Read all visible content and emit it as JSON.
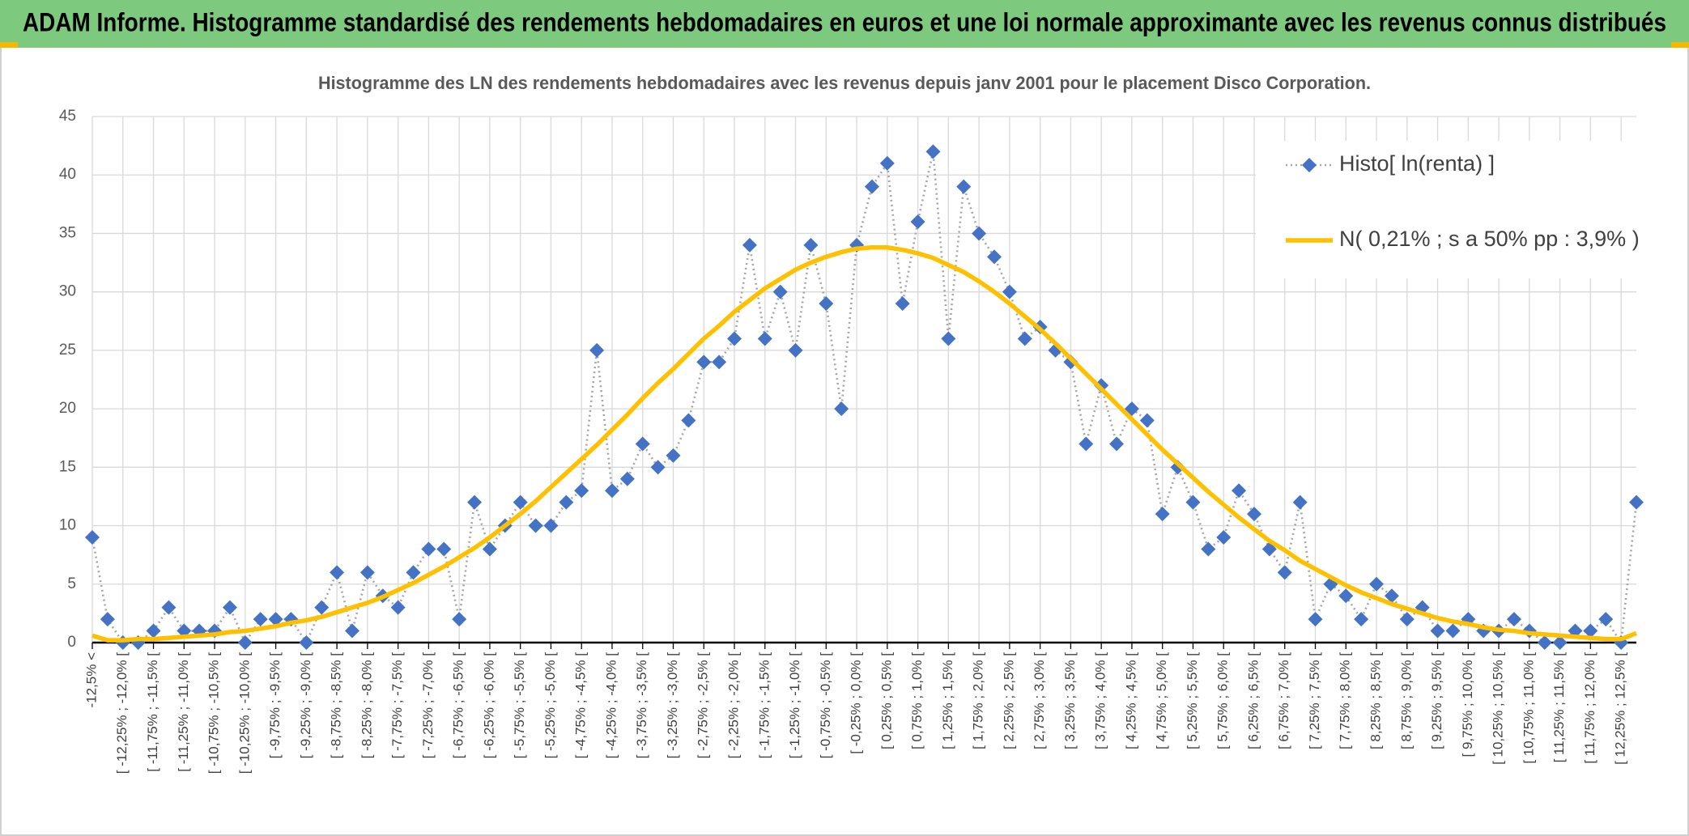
{
  "header": {
    "title": "ADAM Informe. Histogramme standardisé des rendements hebdomadaires en euros et une loi normale approximante avec les revenus connus distribués"
  },
  "chart_data": {
    "type": "line",
    "title": "Histogramme des LN des rendements hebdomadaires avec les revenus depuis janv 2001 pour le placement Disco Corporation.",
    "categories": [
      "-12,5% <",
      null,
      "[ -12,25% ; -12,0% [",
      null,
      "[ -11,75% ; -11,5% [",
      null,
      "[ -11,25% ; -11,0% [",
      null,
      "[ -10,75% ; -10,5% [",
      null,
      "[ -10,25% ; -10,0% [",
      null,
      "[ -9,75% ; -9,5% [",
      null,
      "[ -9,25% ; -9,0% [",
      null,
      "[ -8,75% ; -8,5% [",
      null,
      "[ -8,25% ; -8,0% [",
      null,
      "[ -7,75% ; -7,5% [",
      null,
      "[ -7,25% ; -7,0% [",
      null,
      "[ -6,75% ; -6,5% [",
      null,
      "[ -6,25% ; -6,0% [",
      null,
      "[ -5,75% ; -5,5% [",
      null,
      "[ -5,25% ; -5,0% [",
      null,
      "[ -4,75% ; -4,5% [",
      null,
      "[ -4,25% ; -4,0% [",
      null,
      "[ -3,75% ; -3,5% [",
      null,
      "[ -3,25% ; -3,0% [",
      null,
      "[ -2,75% ; -2,5% [",
      null,
      "[ -2,25% ; -2,0% [",
      null,
      "[ -1,75% ; -1,5% [",
      null,
      "[ -1,25% ; -1,0% [",
      null,
      "[ -0,75% ; -0,5% [",
      null,
      "[ -0,25% ; 0,0% [",
      null,
      "[ 0,25% ; 0,5% [",
      null,
      "[ 0,75% ; 1,0% [",
      null,
      "[ 1,25% ; 1,5% [",
      null,
      "[ 1,75% ; 2,0% [",
      null,
      "[ 2,25% ; 2,5% [",
      null,
      "[ 2,75% ; 3,0% [",
      null,
      "[ 3,25% ; 3,5% [",
      null,
      "[ 3,75% ; 4,0% [",
      null,
      "[ 4,25% ; 4,5% [",
      null,
      "[ 4,75% ; 5,0% [",
      null,
      "[ 5,25% ; 5,5% [",
      null,
      "[ 5,75% ; 6,0% [",
      null,
      "[ 6,25% ; 6,5% [",
      null,
      "[ 6,75% ; 7,0% [",
      null,
      "[ 7,25% ; 7,5% [",
      null,
      "[ 7,75% ; 8,0% [",
      null,
      "[ 8,25% ; 8,5% [",
      null,
      "[ 8,75% ; 9,0% [",
      null,
      "[ 9,25% ; 9,5% [",
      null,
      "[ 9,75% ; 10,0% [",
      null,
      "[ 10,25% ; 10,5% [",
      null,
      "[ 10,75% ; 11,0% [",
      null,
      "[ 11,25% ; 11,5% [",
      null,
      "[ 11,75% ; 12,0% [",
      null,
      "[ 12,25% ; 12,5% [",
      null
    ],
    "series": [
      {
        "name": "Histo[ ln(renta) ]",
        "color": "#4472c4",
        "line_color": "#a5a5a5",
        "marker": "diamond",
        "line_style": "dotted",
        "values": [
          9,
          2,
          0,
          0,
          1,
          3,
          1,
          1,
          1,
          3,
          0,
          2,
          2,
          2,
          0,
          3,
          6,
          1,
          6,
          4,
          3,
          6,
          8,
          8,
          2,
          12,
          8,
          10,
          12,
          10,
          10,
          12,
          13,
          25,
          13,
          14,
          17,
          15,
          16,
          19,
          24,
          24,
          26,
          34,
          26,
          30,
          25,
          34,
          29,
          20,
          34,
          39,
          41,
          29,
          36,
          42,
          26,
          39,
          35,
          33,
          30,
          26,
          27,
          25,
          24,
          17,
          22,
          17,
          20,
          19,
          11,
          15,
          12,
          8,
          9,
          13,
          11,
          8,
          6,
          12,
          2,
          5,
          4,
          2,
          5,
          4,
          2,
          3,
          1,
          1,
          2,
          1,
          1,
          2,
          1,
          0,
          0,
          1,
          1,
          2,
          0,
          12
        ]
      },
      {
        "name": "N( 0,21% ; s a 50% pp : 3,9% )",
        "color": "#ffc000",
        "marker": "none",
        "line_style": "solid",
        "values": [
          0.6,
          0.2,
          0.2,
          0.3,
          0.3,
          0.4,
          0.5,
          0.6,
          0.7,
          0.9,
          1.0,
          1.2,
          1.4,
          1.7,
          1.9,
          2.2,
          2.6,
          3.0,
          3.4,
          3.9,
          4.5,
          5.1,
          5.8,
          6.5,
          7.3,
          8.1,
          9.0,
          10.0,
          11.0,
          12.1,
          13.3,
          14.5,
          15.7,
          16.9,
          18.2,
          19.5,
          20.9,
          22.2,
          23.4,
          24.7,
          26.0,
          27.1,
          28.3,
          29.3,
          30.3,
          31.1,
          31.9,
          32.5,
          33.0,
          33.4,
          33.7,
          33.8,
          33.8,
          33.6,
          33.3,
          32.9,
          32.3,
          31.7,
          30.9,
          30.0,
          29.0,
          27.9,
          26.8,
          25.6,
          24.3,
          23.0,
          21.7,
          20.4,
          19.1,
          17.8,
          16.5,
          15.3,
          14.1,
          12.9,
          11.8,
          10.7,
          9.7,
          8.7,
          7.9,
          7.0,
          6.3,
          5.6,
          4.9,
          4.3,
          3.8,
          3.3,
          2.9,
          2.5,
          2.1,
          1.8,
          1.6,
          1.3,
          1.1,
          1.0,
          0.8,
          0.7,
          0.6,
          0.5,
          0.4,
          0.3,
          0.3,
          0.8
        ]
      }
    ],
    "ylim": [
      0,
      45
    ],
    "yticks": [
      0,
      5,
      10,
      15,
      20,
      25,
      30,
      35,
      40,
      45
    ],
    "grid": true,
    "legend": "top-right"
  }
}
